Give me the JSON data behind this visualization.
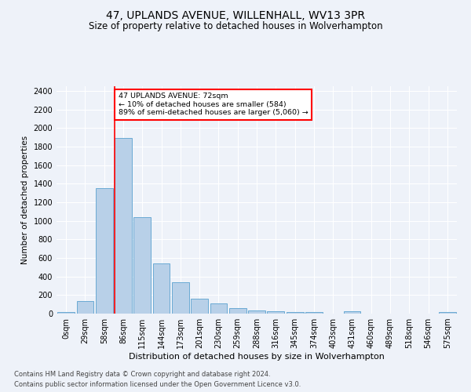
{
  "title": "47, UPLANDS AVENUE, WILLENHALL, WV13 3PR",
  "subtitle": "Size of property relative to detached houses in Wolverhampton",
  "xlabel": "Distribution of detached houses by size in Wolverhampton",
  "ylabel": "Number of detached properties",
  "categories": [
    "0sqm",
    "29sqm",
    "58sqm",
    "86sqm",
    "115sqm",
    "144sqm",
    "173sqm",
    "201sqm",
    "230sqm",
    "259sqm",
    "288sqm",
    "316sqm",
    "345sqm",
    "374sqm",
    "403sqm",
    "431sqm",
    "460sqm",
    "489sqm",
    "518sqm",
    "546sqm",
    "575sqm"
  ],
  "values": [
    15,
    135,
    1350,
    1890,
    1040,
    540,
    335,
    160,
    110,
    60,
    30,
    25,
    20,
    15,
    0,
    25,
    0,
    0,
    0,
    0,
    15
  ],
  "bar_color": "#b8d0e8",
  "bar_edge_color": "#6aaad4",
  "annotation_text": "47 UPLANDS AVENUE: 72sqm\n← 10% of detached houses are smaller (584)\n89% of semi-detached houses are larger (5,060) →",
  "annotation_box_color": "white",
  "annotation_box_edge_color": "red",
  "vline_color": "red",
  "ylim": [
    0,
    2450
  ],
  "yticks": [
    0,
    200,
    400,
    600,
    800,
    1000,
    1200,
    1400,
    1600,
    1800,
    2000,
    2200,
    2400
  ],
  "footnote1": "Contains HM Land Registry data © Crown copyright and database right 2024.",
  "footnote2": "Contains public sector information licensed under the Open Government Licence v3.0.",
  "background_color": "#eef2f9",
  "grid_color": "white",
  "title_fontsize": 10,
  "subtitle_fontsize": 8.5,
  "xlabel_fontsize": 8,
  "ylabel_fontsize": 7.5,
  "tick_fontsize": 7,
  "footnote_fontsize": 6,
  "vline_bin_index": 2.55
}
